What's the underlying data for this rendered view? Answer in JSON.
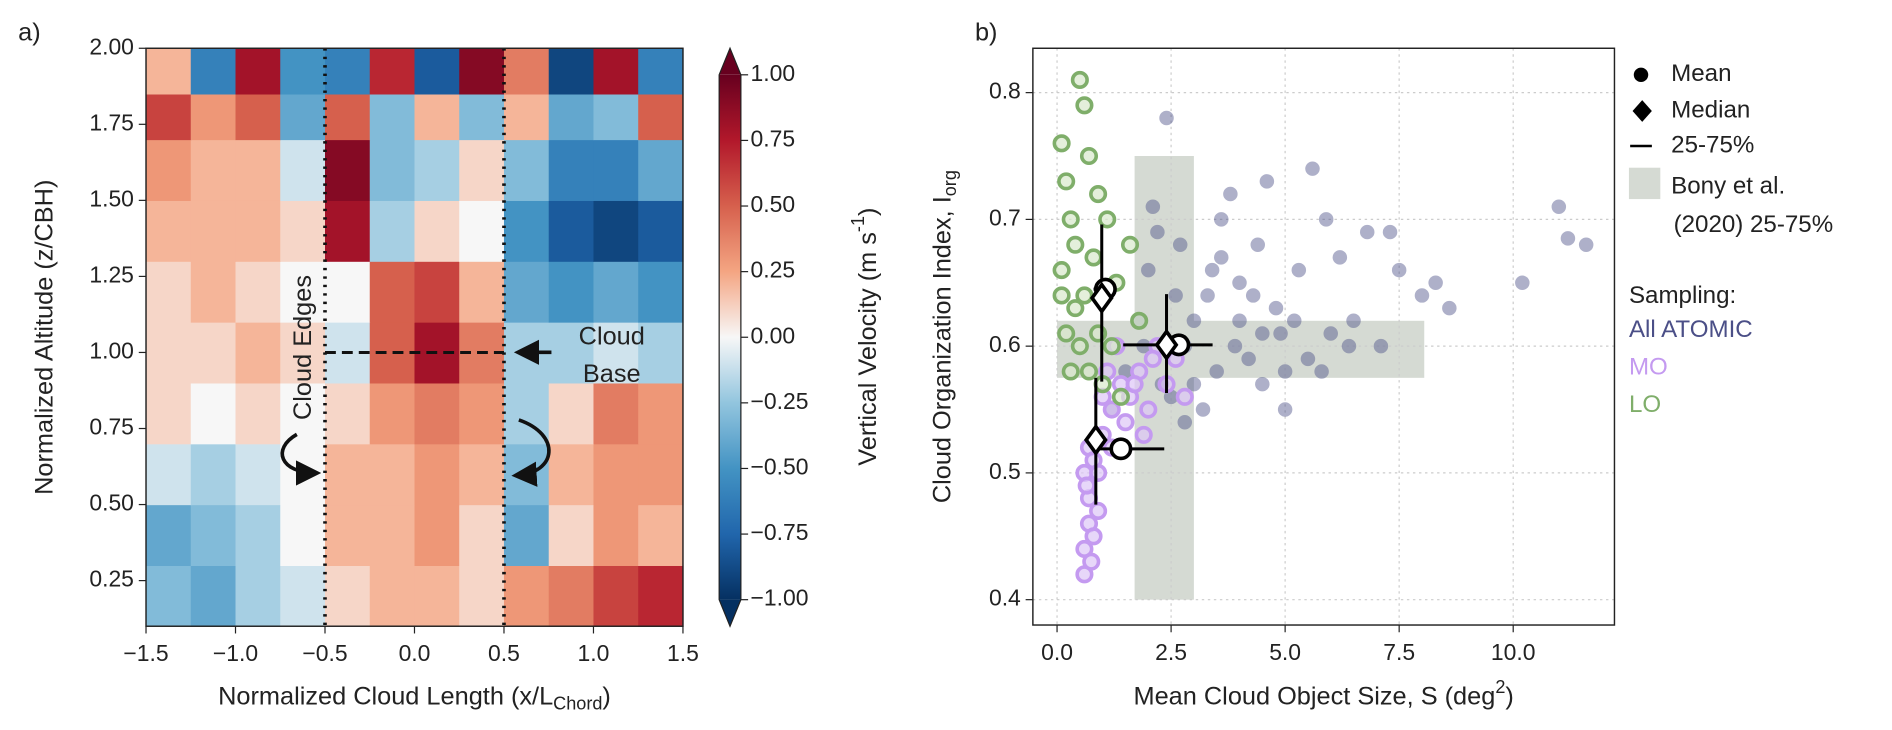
{
  "chart_data": [
    {
      "type": "heatmap",
      "panel_label": "a)",
      "xlabel_parts": [
        "Normalized Cloud Length (x/L",
        "Chord",
        ")"
      ],
      "ylabel": "Normalized Altitude (z/CBH)",
      "colorbar_label_parts": [
        "Vertical Velocity (m s",
        "-1",
        ")"
      ],
      "xlim": [
        -1.5,
        1.5
      ],
      "ylim": [
        0.1,
        2.0
      ],
      "xticks": [
        {
          "value": -1.5,
          "label": "−1.5"
        },
        {
          "value": -1.0,
          "label": "−1.0"
        },
        {
          "value": -0.5,
          "label": "−0.5"
        },
        {
          "value": 0,
          "label": "0.0"
        },
        0.5,
        {
          "value": 1.0,
          "label": "1.0"
        },
        1.5
      ],
      "yticks": [
        0.25,
        {
          "value": 0.5,
          "label": "0.50"
        },
        0.75,
        {
          "value": 1.0,
          "label": "1.00"
        },
        1.25,
        {
          "value": 1.5,
          "label": "1.50"
        },
        1.75,
        {
          "value": 2.0,
          "label": "2.00"
        }
      ],
      "x_edges": [
        -1.5,
        -1.25,
        -1.0,
        -0.75,
        -0.5,
        -0.25,
        0,
        0.25,
        0.5,
        0.75,
        1.0,
        1.25,
        1.5
      ],
      "y_edges": [
        0.1,
        0.3,
        0.5,
        0.7,
        0.9,
        1.1,
        1.3,
        1.5,
        1.7,
        1.85,
        2.0
      ],
      "values": [
        [
          -0.3,
          -0.4,
          -0.2,
          -0.1,
          0.1,
          0.2,
          0.2,
          0.1,
          0.3,
          0.4,
          0.6,
          0.7
        ],
        [
          -0.4,
          -0.3,
          -0.2,
          0.0,
          0.2,
          0.2,
          0.3,
          0.1,
          -0.4,
          0.1,
          0.3,
          0.2
        ],
        [
          -0.1,
          -0.2,
          -0.1,
          0.0,
          0.2,
          0.2,
          0.3,
          0.2,
          -0.3,
          0.2,
          0.3,
          0.3
        ],
        [
          0.1,
          0.0,
          0.1,
          0.0,
          0.1,
          0.3,
          0.4,
          0.3,
          -0.2,
          0.1,
          0.4,
          0.3
        ],
        [
          0.1,
          0.1,
          0.2,
          0.1,
          -0.1,
          0.5,
          0.8,
          0.4,
          -0.2,
          -0.2,
          -0.1,
          -0.2
        ],
        [
          0.1,
          0.2,
          0.1,
          0.0,
          0.0,
          0.5,
          0.6,
          0.2,
          -0.4,
          -0.5,
          -0.4,
          -0.5
        ],
        [
          0.2,
          0.2,
          0.2,
          0.1,
          0.8,
          -0.2,
          0.1,
          0.0,
          -0.5,
          -0.8,
          -0.9,
          -0.8
        ],
        [
          0.3,
          0.2,
          0.2,
          -0.1,
          0.9,
          -0.3,
          -0.2,
          0.1,
          -0.3,
          -0.6,
          -0.6,
          -0.4
        ],
        [
          0.6,
          0.3,
          0.5,
          -0.4,
          0.5,
          -0.3,
          0.2,
          -0.3,
          0.2,
          -0.4,
          -0.3,
          0.5
        ],
        [
          0.2,
          -0.6,
          0.8,
          -0.5,
          -0.6,
          0.7,
          -0.8,
          0.9,
          0.4,
          -0.9,
          0.8,
          -0.6
        ]
      ],
      "colormap": "RdBu_r",
      "clim": [
        -1,
        1
      ],
      "cticks": [
        {
          "value": -1,
          "label": "−1.00"
        },
        {
          "value": -0.75,
          "label": "−0.75"
        },
        {
          "value": -0.5,
          "label": "−0.50"
        },
        {
          "value": -0.25,
          "label": "−0.25"
        },
        {
          "value": 0,
          "label": "0.00"
        },
        0.25,
        {
          "value": 0.5,
          "label": "0.50"
        },
        0.75,
        {
          "value": 1.0,
          "label": "1.00"
        }
      ],
      "vlines": [
        -0.5,
        0.5
      ],
      "hline": {
        "y": 1.0,
        "xmin": -0.5,
        "xmax": 0.5
      },
      "annotations": [
        "Cloud Edges",
        "Cloud",
        "Base"
      ]
    },
    {
      "type": "scatter",
      "panel_label": "b)",
      "xlabel_parts": [
        "Mean Cloud Object Size, S (deg",
        "2",
        ")"
      ],
      "ylabel_parts": [
        "Cloud Organization Index, I",
        "org"
      ],
      "xlim": [
        -0.53,
        12.22
      ],
      "ylim": [
        0.38,
        0.835
      ],
      "xticks": [
        {
          "value": 0,
          "label": "0.0"
        },
        2.5,
        {
          "value": 5.0,
          "label": "5.0"
        },
        7.5,
        {
          "value": 10.0,
          "label": "10.0"
        }
      ],
      "yticks": [
        0.4,
        0.5,
        0.6,
        0.7,
        0.8
      ],
      "grid": true,
      "bony": {
        "x_range": [
          1.7,
          3.0
        ],
        "y_extent": [
          0.4,
          0.75
        ],
        "y_range": [
          0.575,
          0.62
        ],
        "x_extent": [
          0.0,
          8.05
        ],
        "color": "#d5dad3"
      },
      "legend": {
        "mean": "Mean",
        "median": "Median",
        "iqr": "25-75%",
        "bony": [
          "Bony et al.",
          "(2020) 25-75%"
        ],
        "sampling": "Sampling:"
      },
      "series": [
        {
          "name": "All ATOMIC",
          "color": "#4b4f87",
          "x": [
            1.2,
            1.5,
            1.8,
            2.0,
            2.2,
            2.4,
            2.6,
            2.8,
            3.0,
            3.2,
            3.4,
            3.6,
            3.8,
            4.0,
            4.2,
            4.4,
            4.6,
            4.8,
            5.0,
            5.3,
            5.6,
            5.9,
            6.2,
            6.5,
            6.8,
            7.1,
            7.5,
            8.0,
            8.6,
            10.2,
            11.0,
            11.2,
            11.6,
            2.5,
            3.0,
            3.5,
            4.0,
            4.5,
            5.0,
            2.1,
            2.7,
            3.3,
            3.9,
            4.5,
            5.2,
            5.8,
            6.4,
            1.9,
            2.3,
            2.8,
            3.6,
            4.3,
            4.9,
            5.5,
            6.0,
            7.3,
            8.3
          ],
          "y": [
            0.55,
            0.58,
            0.62,
            0.66,
            0.69,
            0.78,
            0.64,
            0.6,
            0.57,
            0.55,
            0.66,
            0.7,
            0.72,
            0.62,
            0.59,
            0.68,
            0.73,
            0.63,
            0.58,
            0.66,
            0.74,
            0.7,
            0.67,
            0.62,
            0.69,
            0.6,
            0.66,
            0.64,
            0.63,
            0.65,
            0.71,
            0.685,
            0.68,
            0.56,
            0.62,
            0.58,
            0.65,
            0.61,
            0.55,
            0.71,
            0.68,
            0.64,
            0.6,
            0.57,
            0.62,
            0.58,
            0.6,
            0.6,
            0.57,
            0.54,
            0.67,
            0.64,
            0.61,
            0.59,
            0.61,
            0.69,
            0.65
          ],
          "mean": [
            2.67,
            0.601
          ],
          "median": [
            2.4,
            0.601
          ],
          "x_iqr": [
            1.45,
            3.41
          ],
          "y_iqr": [
            0.563,
            0.641
          ]
        },
        {
          "name": "MO",
          "color": "#c49af0",
          "x": [
            0.6,
            0.6,
            0.7,
            0.7,
            0.8,
            0.6,
            0.9,
            0.7,
            1.0,
            1.2,
            1.4,
            1.6,
            1.8,
            2.0,
            2.2,
            2.4,
            2.6,
            2.8,
            1.1,
            1.3,
            1.5,
            1.7,
            1.9,
            2.1,
            0.8,
            0.65,
            0.75,
            0.9,
            1.0,
            1.2
          ],
          "y": [
            0.42,
            0.44,
            0.46,
            0.48,
            0.45,
            0.5,
            0.47,
            0.52,
            0.53,
            0.55,
            0.57,
            0.56,
            0.58,
            0.55,
            0.6,
            0.57,
            0.59,
            0.56,
            0.58,
            0.6,
            0.54,
            0.57,
            0.53,
            0.59,
            0.51,
            0.49,
            0.43,
            0.5,
            0.56,
            0.52
          ],
          "mean": [
            1.4,
            0.519
          ],
          "median": [
            0.85,
            0.526
          ],
          "x_iqr": [
            0.9,
            2.35
          ],
          "y_iqr": [
            0.475,
            0.575
          ]
        },
        {
          "name": "LO",
          "color": "#7fae6a",
          "x": [
            0.1,
            0.2,
            0.1,
            0.3,
            0.5,
            0.6,
            0.4,
            0.2,
            0.7,
            0.9,
            1.1,
            0.6,
            0.8,
            1.3,
            1.6,
            0.3,
            0.5,
            1.0,
            1.4,
            1.8,
            0.1,
            0.7,
            1.2,
            0.9,
            0.4
          ],
          "y": [
            0.76,
            0.73,
            0.66,
            0.7,
            0.81,
            0.79,
            0.68,
            0.61,
            0.75,
            0.72,
            0.7,
            0.64,
            0.67,
            0.65,
            0.68,
            0.58,
            0.6,
            0.57,
            0.56,
            0.62,
            0.64,
            0.58,
            0.6,
            0.61,
            0.63
          ],
          "mean": [
            1.06,
            0.645
          ],
          "median": [
            0.98,
            0.638
          ],
          "x_iqr": [
            0.8,
            1.25
          ],
          "y_iqr": [
            0.572,
            0.696
          ]
        }
      ]
    }
  ]
}
